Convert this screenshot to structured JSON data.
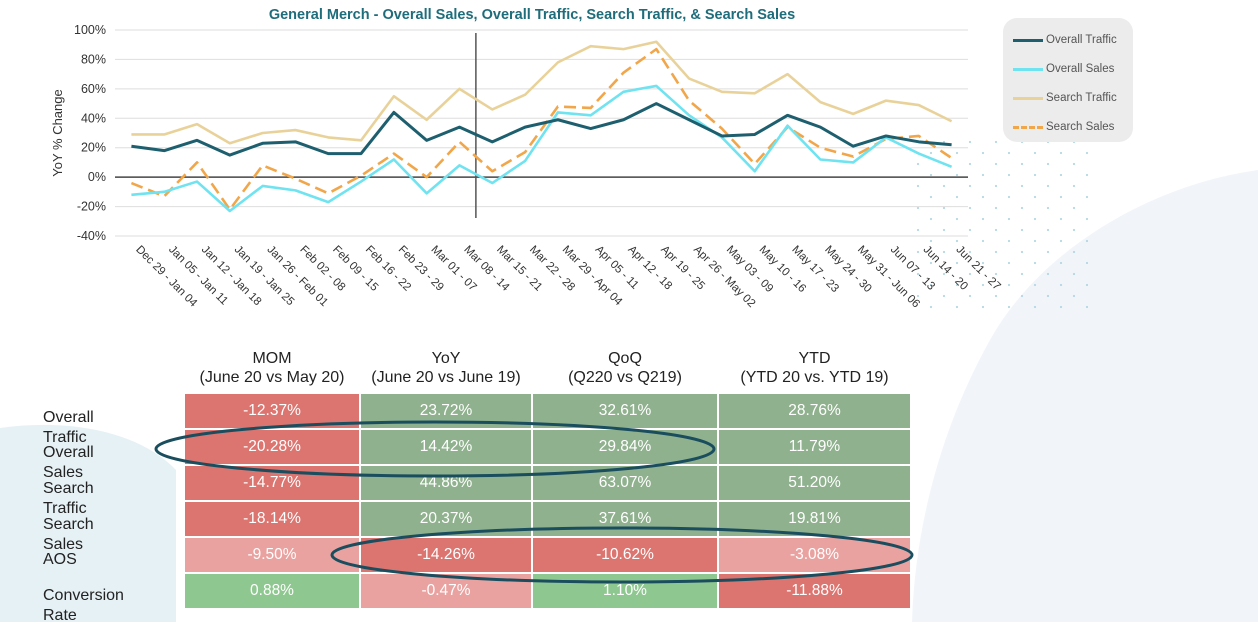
{
  "colors": {
    "overall_traffic": "#1d5f6e",
    "overall_sales": "#6fe3f0",
    "search_traffic": "#e9d29a",
    "search_sales": "#f2a64a",
    "strong_red": "#dc7470",
    "light_red": "#e9a2a0",
    "strong_green": "#8fb18e",
    "light_green": "#8ec78f",
    "oval": "#1a4d5e"
  },
  "chart_data": {
    "type": "line",
    "title": "General Merch - Overall Sales, Overall Traffic, Search Traffic, & Search Sales",
    "xlabel": "",
    "ylabel": "YoY % Change",
    "ylim": [
      -40,
      100
    ],
    "yticks": [
      "100%",
      "80%",
      "60%",
      "40%",
      "20%",
      "0%",
      "-20%",
      "-40%"
    ],
    "grid": true,
    "legend_position": "right",
    "categories": [
      "Dec 29 - Jan 04",
      "Jan 05 - Jan 11",
      "Jan 12 - Jan 18",
      "Jan 19 - Jan 25",
      "Jan 26 - Feb 01",
      "Feb 02 - 08",
      "Feb 09 - 15",
      "Feb 16 - 22",
      "Feb 23 - 29",
      "Mar 01 - 07",
      "Mar 08 - 14",
      "Mar 15 - 21",
      "Mar 22 - 28",
      "Mar 29 - Apr 04",
      "Apr 05 - 11",
      "Apr 12 - 18",
      "Apr 19 - 25",
      "Apr 26 - May 02",
      "May 03 - 09",
      "May 10 - 16",
      "May 17 - 23",
      "May 24 - 30",
      "May 31 - Jun 06",
      "Jun 07 - 13",
      "Jun 14 - 20",
      "Jun 21 - 27"
    ],
    "vertical_marker_after_category": "Mar 15 - 21",
    "series": [
      {
        "name": "Overall Traffic",
        "style": "solid",
        "values": [
          21,
          18,
          25,
          15,
          23,
          24,
          16,
          16,
          44,
          25,
          34,
          24,
          34,
          39,
          33,
          39,
          50,
          39,
          28,
          29,
          42,
          34,
          21,
          28,
          24,
          22
        ]
      },
      {
        "name": "Overall Sales",
        "style": "solid",
        "values": [
          -12,
          -10,
          -3,
          -23,
          -6,
          -9,
          -17,
          -3,
          12,
          -11,
          8,
          -4,
          11,
          44,
          42,
          58,
          62,
          42,
          27,
          4,
          35,
          12,
          10,
          27,
          16,
          7
        ]
      },
      {
        "name": "Search Traffic",
        "style": "solid",
        "values": [
          29,
          29,
          36,
          23,
          30,
          32,
          27,
          25,
          55,
          39,
          60,
          46,
          56,
          78,
          89,
          87,
          92,
          67,
          58,
          57,
          70,
          51,
          43,
          52,
          49,
          38
        ]
      },
      {
        "name": "Search Sales",
        "style": "dashed",
        "values": [
          -4,
          -13,
          10,
          -22,
          8,
          -1,
          -11,
          1,
          16,
          0,
          24,
          4,
          17,
          48,
          47,
          71,
          87,
          52,
          33,
          9,
          34,
          20,
          14,
          26,
          28,
          13
        ]
      }
    ]
  },
  "table": {
    "columns": [
      {
        "title": "MOM",
        "sub": "(June 20 vs May 20)"
      },
      {
        "title": "YoY",
        "sub": "(June 20 vs June 19)"
      },
      {
        "title": "QoQ",
        "sub": "(Q220 vs Q219)"
      },
      {
        "title": "YTD",
        "sub": "(YTD 20 vs. YTD 19)"
      }
    ],
    "rows": [
      {
        "label": "Overall Traffic",
        "values": [
          "-12.37%",
          "23.72%",
          "32.61%",
          "28.76%"
        ],
        "shades": [
          "strong_red",
          "strong_green",
          "strong_green",
          "strong_green"
        ]
      },
      {
        "label": "Overall Sales",
        "values": [
          "-20.28%",
          "14.42%",
          "29.84%",
          "11.79%"
        ],
        "shades": [
          "strong_red",
          "strong_green",
          "strong_green",
          "strong_green"
        ]
      },
      {
        "label": "Search Traffic",
        "values": [
          "-14.77%",
          "44.86%",
          "63.07%",
          "51.20%"
        ],
        "shades": [
          "strong_red",
          "strong_green",
          "strong_green",
          "strong_green"
        ]
      },
      {
        "label": "Search Sales",
        "values": [
          "-18.14%",
          "20.37%",
          "37.61%",
          "19.81%"
        ],
        "shades": [
          "strong_red",
          "strong_green",
          "strong_green",
          "strong_green"
        ]
      },
      {
        "label": "AOS",
        "values": [
          "-9.50%",
          "-14.26%",
          "-10.62%",
          "-3.08%"
        ],
        "shades": [
          "light_red",
          "strong_red",
          "strong_red",
          "light_red"
        ]
      },
      {
        "label": "Conversion Rate",
        "values": [
          "0.88%",
          "-0.47%",
          "1.10%",
          "-11.88%"
        ],
        "shades": [
          "light_green",
          "light_red",
          "light_green",
          "strong_red"
        ]
      }
    ]
  }
}
